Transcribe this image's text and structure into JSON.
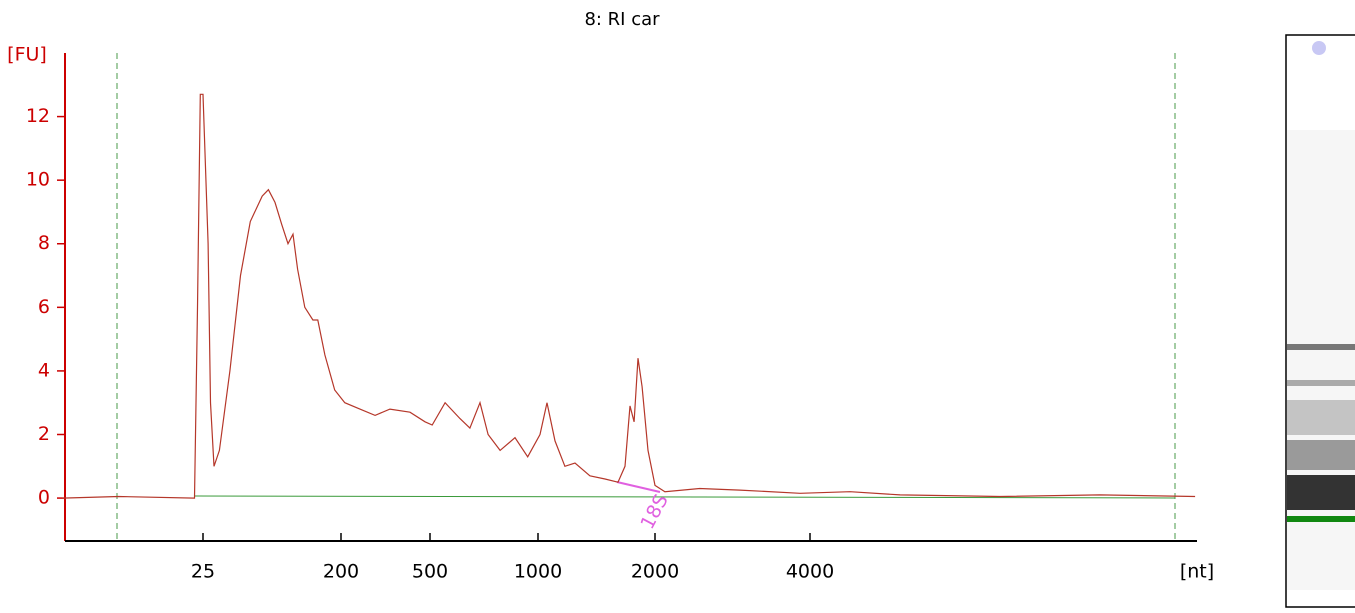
{
  "chart_data": {
    "type": "line",
    "title": "8: RI car",
    "y_label": "[FU]",
    "x_label": "[nt]",
    "color": "#b5372a",
    "x": [
      3,
      7,
      22,
      23,
      24,
      25,
      27,
      28,
      29.5,
      32,
      37.5,
      44,
      51,
      61,
      67,
      74,
      82,
      90,
      97,
      104,
      116,
      131,
      141,
      157,
      182,
      208,
      243,
      284,
      331,
      407,
      475,
      507,
      551,
      606,
      646,
      689,
      726,
      784,
      863,
      936,
      1012,
      1055,
      1106,
      1173,
      1245,
      1360,
      1487,
      1606,
      1674,
      1725,
      1767,
      1808,
      1853,
      1919,
      2000,
      2091,
      2443,
      2923,
      3826,
      4786,
      5985,
      9354,
      14620,
      22390
    ],
    "values": [
      0,
      0.05,
      0,
      6,
      12.7,
      12.7,
      8,
      3,
      1,
      1.5,
      4,
      7,
      8.7,
      9.5,
      9.7,
      9.3,
      8.6,
      8,
      8.3,
      7.2,
      6,
      5.6,
      5.6,
      4.5,
      3.4,
      3,
      2.8,
      2.6,
      2.8,
      2.7,
      2.4,
      2.3,
      3,
      2.5,
      2.2,
      3,
      2,
      1.5,
      1.9,
      1.3,
      2,
      3,
      1.8,
      1,
      1.1,
      0.7,
      0.6,
      0.5,
      1,
      2.9,
      2.4,
      4.4,
      3.5,
      1.5,
      0.4,
      0.2,
      0.3,
      0.25,
      0.15,
      0.2,
      0.1,
      0.05,
      0.1,
      0.05
    ],
    "xlim": [
      3,
      22390
    ],
    "xticks": [
      25,
      200,
      500,
      1000,
      2000,
      4000
    ],
    "ylim": [
      -1.35,
      14
    ],
    "yticks": [
      0,
      2,
      4,
      6,
      8,
      10,
      12
    ],
    "annotations": [
      {
        "label": "18S"
      }
    ]
  }
}
